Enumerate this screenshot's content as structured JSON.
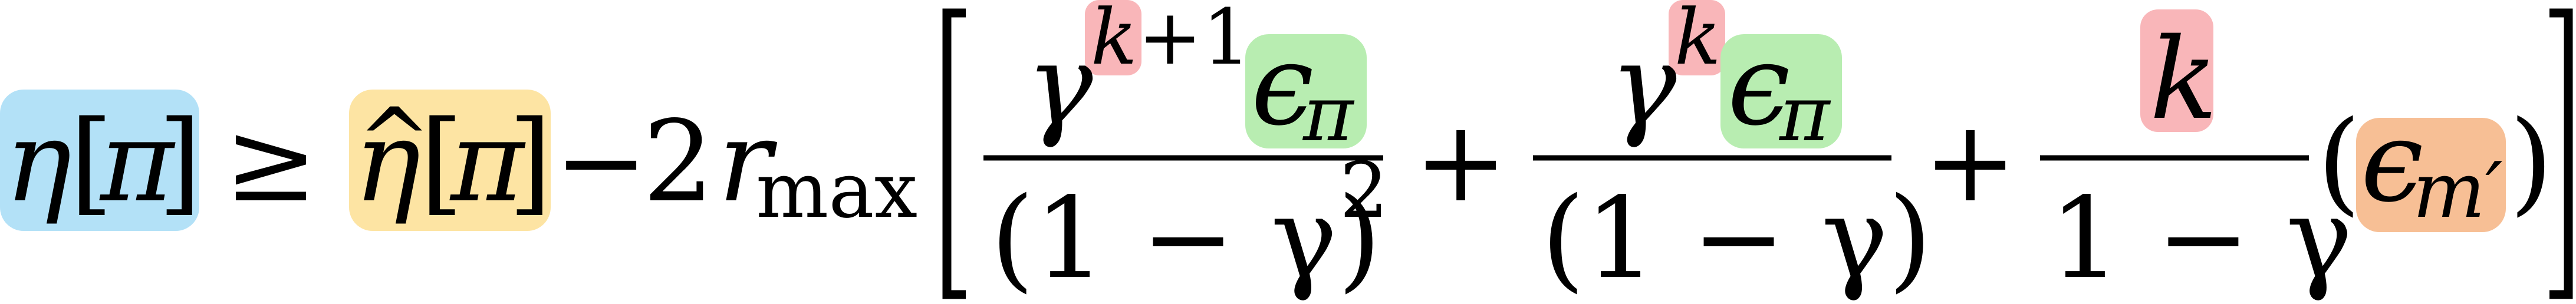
{
  "colors": {
    "blue": "#b3e1f7",
    "yellow": "#fde4a3",
    "pink": "#f9b6b9",
    "green": "#b8edb1",
    "orange": "#f7bf95",
    "ink": "#000000"
  },
  "formula": {
    "lhs": {
      "eta": "η",
      "open_bracket": "[",
      "pi": "π",
      "close_bracket": "]"
    },
    "geq": "≥",
    "estimate": {
      "eta_hat": "η",
      "hat": "^",
      "open_bracket": "[",
      "pi": "π",
      "close_bracket": "]"
    },
    "minus": "−",
    "coefficient": "2",
    "r": "r",
    "r_subscript": "max",
    "big_open_bracket": "[",
    "big_close_bracket": "]",
    "term1": {
      "gamma": "γ",
      "exp_k": "k",
      "exp_rest": "+1",
      "epsilon": "ϵ",
      "eps_sub": "π",
      "denominator": "(1 − γ)",
      "denominator_exp": "2"
    },
    "plus1": "+",
    "term2": {
      "gamma": "γ",
      "exp_k": "k",
      "epsilon": "ϵ",
      "eps_sub": "π",
      "denominator": "(1 − γ)"
    },
    "plus2": "+",
    "term3": {
      "numerator_k": "k",
      "denominator": "1 − γ",
      "open_paren": "(",
      "epsilon": "ϵ",
      "eps_sub": "m′",
      "close_paren": ")"
    }
  }
}
